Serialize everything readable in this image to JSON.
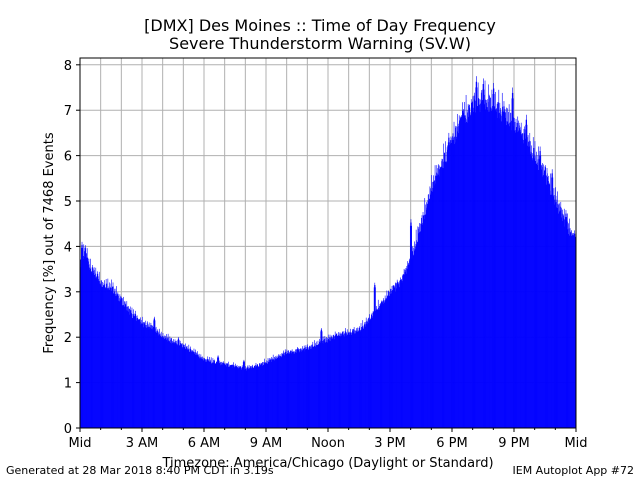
{
  "chart_data": {
    "type": "bar",
    "title": "[DMX] Des Moines :: Time of Day Frequency",
    "subtitle": "Severe Thunderstorm Warning (SV.W)",
    "xlabel": "Timezone: America/Chicago (Daylight or Standard)",
    "ylabel": "Frequency [%] out of 7468 Events",
    "xlim": [
      0,
      1440
    ],
    "ylim": [
      0,
      8.15
    ],
    "x_units": "minutes after midnight",
    "x_ticks": [
      {
        "value": 0,
        "label": "Mid"
      },
      {
        "value": 180,
        "label": "3 AM"
      },
      {
        "value": 360,
        "label": "6 AM"
      },
      {
        "value": 540,
        "label": "9 AM"
      },
      {
        "value": 720,
        "label": "Noon"
      },
      {
        "value": 900,
        "label": "3 PM"
      },
      {
        "value": 1080,
        "label": "6 PM"
      },
      {
        "value": 1260,
        "label": "9 PM"
      },
      {
        "value": 1440,
        "label": "Mid"
      }
    ],
    "x_minor_ticks": [
      60,
      120,
      240,
      300,
      420,
      480,
      600,
      660,
      780,
      840,
      960,
      1020,
      1140,
      1200,
      1320,
      1380
    ],
    "y_ticks": [
      {
        "value": 0,
        "label": "0"
      },
      {
        "value": 1,
        "label": "1"
      },
      {
        "value": 2,
        "label": "2"
      },
      {
        "value": 3,
        "label": "3"
      },
      {
        "value": 4,
        "label": "4"
      },
      {
        "value": 5,
        "label": "5"
      },
      {
        "value": 6,
        "label": "6"
      },
      {
        "value": 7,
        "label": "7"
      },
      {
        "value": 8,
        "label": "8"
      }
    ],
    "grid": true,
    "bar_color": "#0000ff",
    "bar_width": 1,
    "profile": {
      "x": [
        0,
        15,
        30,
        60,
        90,
        120,
        150,
        180,
        210,
        240,
        270,
        300,
        330,
        360,
        390,
        420,
        450,
        480,
        510,
        540,
        570,
        600,
        630,
        660,
        690,
        720,
        750,
        780,
        810,
        840,
        870,
        900,
        930,
        960,
        990,
        1020,
        1050,
        1080,
        1110,
        1140,
        1170,
        1200,
        1230,
        1260,
        1290,
        1320,
        1350,
        1380,
        1410,
        1440
      ],
      "y": [
        3.6,
        3.9,
        3.5,
        3.2,
        3.1,
        2.8,
        2.5,
        2.3,
        2.2,
        2.0,
        1.9,
        1.8,
        1.65,
        1.5,
        1.45,
        1.4,
        1.35,
        1.3,
        1.35,
        1.45,
        1.55,
        1.65,
        1.7,
        1.75,
        1.85,
        1.95,
        2.05,
        2.1,
        2.15,
        2.4,
        2.7,
        3.0,
        3.2,
        3.7,
        4.5,
        5.3,
        5.8,
        6.3,
        6.8,
        7.1,
        7.2,
        7.1,
        6.9,
        6.7,
        6.4,
        6.0,
        5.6,
        5.0,
        4.5,
        4.1
      ]
    },
    "peaks": [
      {
        "x": 5,
        "y": 4.1
      },
      {
        "x": 25,
        "y": 3.65
      },
      {
        "x": 50,
        "y": 3.45
      },
      {
        "x": 100,
        "y": 3.05
      },
      {
        "x": 160,
        "y": 2.55
      },
      {
        "x": 215,
        "y": 2.45
      },
      {
        "x": 285,
        "y": 2.0
      },
      {
        "x": 400,
        "y": 1.6
      },
      {
        "x": 475,
        "y": 1.5
      },
      {
        "x": 700,
        "y": 2.2
      },
      {
        "x": 855,
        "y": 3.2
      },
      {
        "x": 960,
        "y": 4.6
      },
      {
        "x": 1070,
        "y": 6.5
      },
      {
        "x": 1110,
        "y": 7.1
      },
      {
        "x": 1150,
        "y": 7.75
      },
      {
        "x": 1170,
        "y": 7.7
      },
      {
        "x": 1200,
        "y": 7.6
      },
      {
        "x": 1230,
        "y": 7.2
      },
      {
        "x": 1255,
        "y": 7.5
      },
      {
        "x": 1295,
        "y": 6.9
      },
      {
        "x": 1335,
        "y": 6.2
      },
      {
        "x": 1370,
        "y": 5.7
      },
      {
        "x": 1410,
        "y": 4.8
      },
      {
        "x": 1435,
        "y": 4.35
      }
    ]
  },
  "footer": {
    "generated": "Generated at 28 Mar 2018 8:40 PM CDT in 3.19s",
    "app": "IEM Autoplot App #72"
  }
}
